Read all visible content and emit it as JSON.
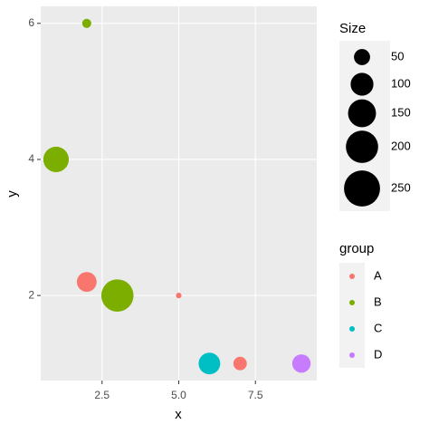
{
  "chart_data": {
    "type": "bubble",
    "x_label": "x",
    "y_label": "y",
    "xlim": [
      0.5,
      9.5
    ],
    "ylim": [
      0.75,
      6.25
    ],
    "xticks": [
      {
        "value": 2.5,
        "label": "2.5"
      },
      {
        "value": 5,
        "label": "5.0"
      },
      {
        "value": 7.5,
        "label": "7.5"
      }
    ],
    "yticks": [
      2,
      4,
      6
    ],
    "grid": true,
    "color_legend_title": "group",
    "size_legend_title": "Size",
    "size_legend": [
      50,
      100,
      150,
      200,
      250
    ],
    "series": [
      {
        "name": "A",
        "color": "#F8766D",
        "x": [
          2,
          5,
          7
        ],
        "y": [
          2.2,
          2,
          1
        ],
        "size": [
          75,
          6,
          35
        ]
      },
      {
        "name": "B",
        "color": "#7CAE00",
        "x": [
          1,
          2,
          3
        ],
        "y": [
          4,
          6,
          2
        ],
        "size": [
          125,
          16,
          200
        ]
      },
      {
        "name": "C",
        "color": "#00BFC4",
        "x": [
          6
        ],
        "y": [
          1
        ],
        "size": [
          90
        ]
      },
      {
        "name": "D",
        "color": "#C77CFF",
        "x": [
          9
        ],
        "y": [
          1
        ],
        "size": [
          65
        ]
      }
    ]
  }
}
